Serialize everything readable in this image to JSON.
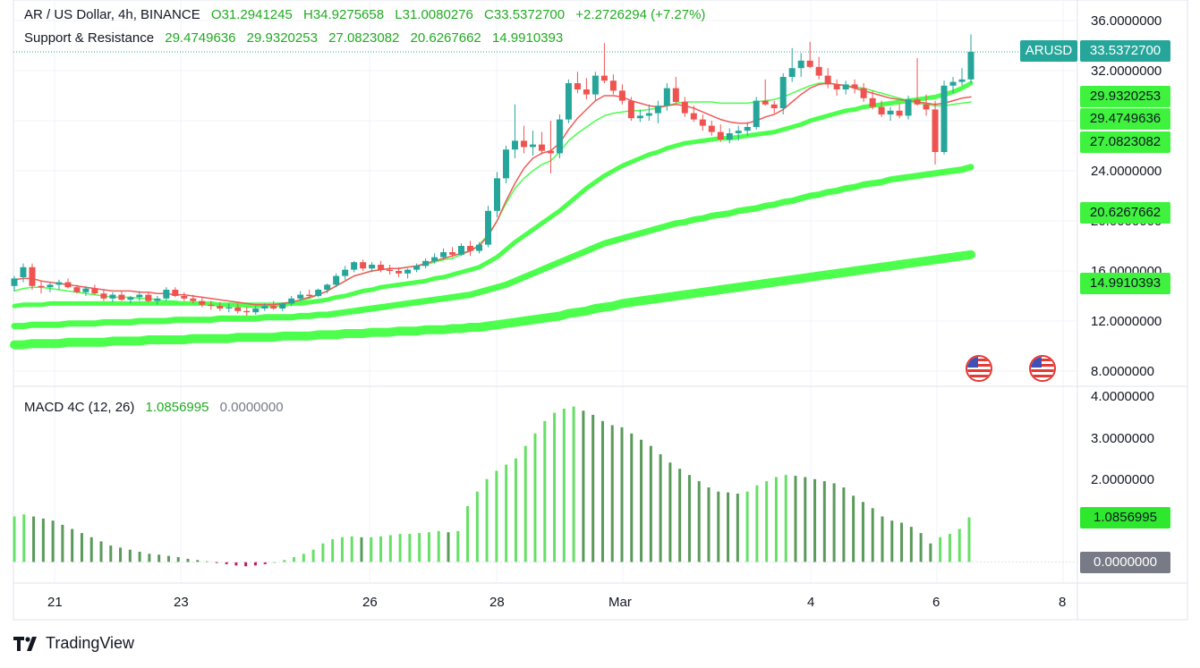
{
  "header": {
    "symbol_line": "AR / US Dollar, 4h, BINANCE",
    "open": "O31.2941245",
    "high": "H34.9275658",
    "low": "L31.0080276",
    "close": "C33.5372700",
    "change": "+2.2726294 (+7.27%)",
    "sr_label": "Support & Resistance",
    "sr_values": [
      "29.4749636",
      "29.9320253",
      "27.0823082",
      "20.6267662",
      "14.9910393"
    ]
  },
  "price_axis": {
    "ticks": [
      "36.0000000",
      "32.0000000",
      "24.0000000",
      "20.0000000",
      "16.0000000",
      "12.0000000",
      "8.0000000"
    ],
    "ticker_label": "ARUSD",
    "last_price": "33.5372700",
    "level_labels": [
      "29.9320253",
      "29.4749636",
      "27.0823082",
      "20.6267662",
      "14.9910393"
    ]
  },
  "macd": {
    "label": "MACD 4C (12, 26)",
    "value": "1.0856995",
    "zero": "0.0000000",
    "ticks": [
      "4.0000000",
      "3.0000000",
      "2.0000000"
    ],
    "value_box": "1.0856995",
    "zero_box": "0.0000000"
  },
  "time_axis": [
    "21",
    "23",
    "26",
    "28",
    "Mar",
    "4",
    "6",
    "8"
  ],
  "brand": "TradingView",
  "colors": {
    "up": "#26a69a",
    "down": "#ef5350",
    "ma_green": "#4cff4c",
    "ma_red": "#f05a5a",
    "macd_light": "#66e066",
    "macd_dark": "#5a9a5a"
  },
  "chart_data": {
    "type": "candlestick",
    "title": "AR / US Dollar, 4h, BINANCE",
    "ylim": [
      8,
      36
    ],
    "x_ticks": [
      "21",
      "23",
      "26",
      "28",
      "Mar",
      "4",
      "6",
      "8"
    ],
    "support_resistance": [
      29.4749636,
      29.9320253,
      27.0823082,
      20.6267662,
      14.9910393
    ],
    "candles": [
      [
        14.8,
        15.6,
        14.4,
        15.4
      ],
      [
        15.5,
        16.6,
        15.1,
        16.3
      ],
      [
        16.3,
        16.6,
        14.5,
        14.8
      ],
      [
        14.8,
        15.2,
        14.2,
        14.7
      ],
      [
        14.7,
        15.1,
        14.3,
        14.9
      ],
      [
        14.9,
        15.3,
        14.5,
        15.1
      ],
      [
        15.1,
        15.4,
        14.6,
        14.7
      ],
      [
        14.7,
        14.9,
        14.2,
        14.3
      ],
      [
        14.3,
        14.8,
        14.0,
        14.6
      ],
      [
        14.6,
        14.9,
        14.1,
        14.2
      ],
      [
        14.2,
        14.5,
        13.6,
        13.8
      ],
      [
        13.8,
        14.3,
        13.5,
        14.1
      ],
      [
        14.1,
        14.4,
        13.6,
        13.7
      ],
      [
        13.7,
        14.0,
        13.4,
        13.9
      ],
      [
        13.9,
        14.4,
        13.6,
        14.1
      ],
      [
        14.1,
        14.3,
        13.5,
        13.6
      ],
      [
        13.6,
        14.0,
        13.3,
        13.8
      ],
      [
        13.8,
        14.7,
        13.6,
        14.5
      ],
      [
        14.5,
        14.7,
        13.9,
        14.0
      ],
      [
        14.0,
        14.3,
        13.6,
        13.8
      ],
      [
        13.8,
        14.1,
        13.4,
        13.6
      ],
      [
        13.6,
        13.9,
        13.1,
        13.3
      ],
      [
        13.3,
        13.6,
        12.9,
        13.2
      ],
      [
        13.2,
        13.5,
        12.8,
        13.0
      ],
      [
        13.0,
        13.4,
        12.7,
        13.1
      ],
      [
        13.1,
        13.4,
        12.6,
        12.8
      ],
      [
        12.8,
        13.1,
        12.4,
        12.7
      ],
      [
        12.7,
        13.2,
        12.5,
        13.0
      ],
      [
        13.0,
        13.4,
        12.8,
        13.2
      ],
      [
        13.2,
        13.6,
        12.9,
        13.0
      ],
      [
        13.0,
        13.5,
        12.8,
        13.4
      ],
      [
        13.4,
        14.0,
        13.2,
        13.8
      ],
      [
        13.8,
        14.4,
        13.6,
        14.1
      ],
      [
        14.1,
        14.5,
        13.8,
        14.0
      ],
      [
        14.0,
        14.6,
        13.9,
        14.5
      ],
      [
        14.5,
        15.0,
        14.2,
        14.9
      ],
      [
        14.9,
        15.8,
        14.7,
        15.6
      ],
      [
        15.6,
        16.4,
        15.3,
        16.1
      ],
      [
        16.1,
        16.8,
        15.9,
        16.7
      ],
      [
        16.7,
        16.9,
        16.0,
        16.2
      ],
      [
        16.2,
        16.7,
        15.9,
        16.5
      ],
      [
        16.5,
        16.8,
        15.9,
        16.1
      ],
      [
        16.1,
        16.5,
        15.7,
        16.0
      ],
      [
        16.0,
        16.3,
        15.5,
        15.8
      ],
      [
        15.8,
        16.2,
        15.4,
        16.1
      ],
      [
        16.1,
        16.6,
        15.9,
        16.4
      ],
      [
        16.4,
        17.0,
        16.2,
        16.8
      ],
      [
        16.8,
        17.4,
        16.6,
        17.1
      ],
      [
        17.1,
        17.8,
        16.9,
        17.5
      ],
      [
        17.5,
        17.9,
        17.1,
        17.3
      ],
      [
        17.3,
        18.2,
        17.2,
        18.0
      ],
      [
        18.0,
        18.4,
        17.2,
        17.6
      ],
      [
        17.6,
        18.3,
        17.4,
        18.1
      ],
      [
        18.1,
        21.2,
        17.9,
        20.8
      ],
      [
        20.8,
        23.9,
        20.3,
        23.4
      ],
      [
        23.4,
        26.0,
        23.0,
        25.7
      ],
      [
        25.7,
        29.3,
        25.0,
        26.4
      ],
      [
        26.4,
        27.6,
        25.4,
        25.9
      ],
      [
        25.9,
        27.2,
        25.2,
        26.1
      ],
      [
        26.1,
        27.1,
        25.3,
        25.6
      ],
      [
        25.6,
        28.0,
        23.8,
        25.4
      ],
      [
        25.4,
        28.5,
        25.0,
        28.1
      ],
      [
        28.1,
        31.3,
        27.8,
        31.0
      ],
      [
        31.0,
        31.9,
        30.2,
        30.5
      ],
      [
        30.5,
        31.4,
        29.7,
        30.1
      ],
      [
        30.1,
        31.9,
        29.6,
        31.6
      ],
      [
        31.6,
        34.2,
        31.0,
        31.2
      ],
      [
        31.2,
        31.7,
        30.1,
        30.4
      ],
      [
        30.4,
        30.9,
        29.3,
        29.6
      ],
      [
        29.6,
        29.9,
        28.0,
        28.2
      ],
      [
        28.2,
        28.9,
        27.9,
        28.4
      ],
      [
        28.4,
        29.3,
        28.0,
        28.6
      ],
      [
        28.6,
        29.6,
        27.8,
        29.2
      ],
      [
        29.2,
        31.0,
        28.8,
        30.6
      ],
      [
        30.6,
        31.5,
        29.4,
        29.5
      ],
      [
        29.5,
        29.9,
        28.3,
        28.6
      ],
      [
        28.6,
        29.2,
        27.9,
        28.1
      ],
      [
        28.1,
        28.5,
        27.2,
        27.6
      ],
      [
        27.6,
        28.0,
        26.8,
        27.1
      ],
      [
        27.1,
        27.7,
        26.3,
        26.5
      ],
      [
        26.5,
        27.4,
        26.2,
        27.0
      ],
      [
        27.0,
        27.6,
        26.4,
        27.2
      ],
      [
        27.2,
        27.9,
        26.8,
        27.5
      ],
      [
        27.5,
        29.9,
        27.3,
        29.6
      ],
      [
        29.6,
        31.3,
        29.2,
        29.3
      ],
      [
        29.3,
        29.6,
        28.6,
        29.0
      ],
      [
        29.0,
        31.8,
        28.5,
        31.5
      ],
      [
        31.5,
        33.8,
        31.1,
        32.2
      ],
      [
        32.2,
        33.4,
        31.5,
        32.8
      ],
      [
        32.8,
        34.3,
        32.2,
        32.3
      ],
      [
        32.3,
        33.1,
        31.3,
        31.6
      ],
      [
        31.6,
        32.2,
        30.6,
        30.9
      ],
      [
        30.9,
        31.3,
        30.0,
        30.5
      ],
      [
        30.5,
        31.2,
        30.1,
        30.9
      ],
      [
        30.9,
        31.3,
        30.2,
        30.6
      ],
      [
        30.6,
        31.0,
        29.5,
        29.8
      ],
      [
        29.8,
        30.4,
        28.9,
        29.1
      ],
      [
        29.1,
        29.6,
        28.3,
        28.5
      ],
      [
        28.5,
        29.1,
        28.0,
        28.8
      ],
      [
        28.8,
        29.4,
        28.2,
        28.4
      ],
      [
        28.4,
        30.0,
        28.1,
        29.7
      ],
      [
        29.7,
        33.0,
        29.2,
        29.3
      ],
      [
        29.3,
        30.1,
        28.4,
        28.9
      ],
      [
        28.9,
        29.6,
        24.5,
        25.5
      ],
      [
        25.5,
        31.2,
        25.3,
        30.8
      ],
      [
        30.8,
        31.5,
        30.2,
        31.1
      ],
      [
        31.1,
        32.2,
        30.8,
        31.3
      ],
      [
        31.3,
        34.9,
        31.0,
        33.5
      ]
    ],
    "series": [
      {
        "name": "29.4749636",
        "values": [
          14.4,
          14.6,
          14.7,
          14.7,
          14.6,
          14.5,
          14.4,
          14.3,
          14.2,
          14.1,
          14.0,
          13.9,
          13.9,
          13.9,
          13.8,
          13.8,
          13.7,
          13.6,
          13.6,
          13.5,
          13.5,
          13.4,
          13.4,
          13.3,
          13.2,
          13.2,
          13.1,
          13.1,
          13.1,
          13.2,
          13.3,
          13.4,
          13.6,
          13.8,
          14.1,
          14.4,
          14.8,
          15.2,
          15.6,
          15.8,
          16.0,
          16.1,
          16.2,
          16.2,
          16.3,
          16.4,
          16.5,
          16.7,
          16.9,
          17.0,
          17.3,
          17.6,
          18.1,
          18.9,
          20.0,
          21.4,
          22.6,
          23.4,
          24.0,
          24.5,
          24.8,
          25.5,
          26.4,
          27.0,
          27.5,
          28.0,
          28.4,
          28.6,
          28.7,
          28.8,
          28.8,
          28.9,
          29.0,
          29.2,
          29.4,
          29.5,
          29.5,
          29.5,
          29.5,
          29.4,
          29.4,
          29.4,
          29.4,
          29.5,
          29.6,
          29.7,
          29.9,
          30.2,
          30.5,
          30.8,
          31.0,
          31.0,
          30.9,
          30.8,
          30.7,
          30.6,
          30.4,
          30.2,
          30.0,
          29.8,
          29.6,
          29.4,
          29.3,
          29.2,
          29.2,
          29.3,
          29.4,
          29.5
        ]
      },
      {
        "name": "29.9320253",
        "values": [
          15.3,
          15.4,
          15.4,
          15.2,
          15.1,
          15.0,
          14.9,
          14.8,
          14.7,
          14.6,
          14.5,
          14.4,
          14.4,
          14.4,
          14.3,
          14.3,
          14.2,
          14.2,
          14.1,
          14.1,
          14.0,
          13.9,
          13.8,
          13.7,
          13.6,
          13.5,
          13.4,
          13.3,
          13.3,
          13.3,
          13.4,
          13.5,
          13.7,
          13.9,
          14.1,
          14.4,
          14.8,
          15.2,
          15.6,
          15.8,
          16.0,
          16.1,
          16.2,
          16.2,
          16.3,
          16.4,
          16.6,
          16.8,
          17.0,
          17.2,
          17.4,
          17.6,
          18.0,
          18.8,
          20.0,
          21.6,
          23.0,
          24.2,
          25.0,
          25.4,
          25.6,
          26.2,
          27.3,
          28.2,
          28.9,
          29.6,
          30.0,
          30.0,
          29.9,
          29.6,
          29.4,
          29.2,
          29.1,
          29.2,
          29.3,
          29.2,
          29.0,
          28.7,
          28.4,
          28.1,
          27.9,
          27.8,
          27.8,
          28.0,
          28.3,
          28.5,
          28.9,
          29.5,
          30.1,
          30.6,
          30.9,
          31.0,
          30.9,
          30.8,
          30.6,
          30.4,
          30.2,
          30.0,
          29.8,
          29.7,
          29.6,
          29.5,
          29.4,
          29.3,
          29.4,
          29.6,
          29.8,
          29.9
        ]
      },
      {
        "name": "27.0823082",
        "values": [
          13.2,
          13.3,
          13.3,
          13.3,
          13.4,
          13.4,
          13.4,
          13.4,
          13.4,
          13.4,
          13.4,
          13.4,
          13.4,
          13.4,
          13.4,
          13.4,
          13.4,
          13.4,
          13.4,
          13.4,
          13.4,
          13.4,
          13.4,
          13.3,
          13.3,
          13.3,
          13.3,
          13.3,
          13.3,
          13.3,
          13.3,
          13.4,
          13.4,
          13.5,
          13.6,
          13.7,
          13.9,
          14.0,
          14.2,
          14.4,
          14.5,
          14.7,
          14.8,
          14.9,
          15.0,
          15.1,
          15.2,
          15.4,
          15.5,
          15.7,
          15.9,
          16.1,
          16.3,
          16.7,
          17.1,
          17.7,
          18.3,
          18.8,
          19.3,
          19.8,
          20.3,
          20.8,
          21.4,
          22.0,
          22.6,
          23.1,
          23.6,
          24.0,
          24.4,
          24.7,
          25.0,
          25.3,
          25.5,
          25.8,
          26.0,
          26.2,
          26.3,
          26.4,
          26.5,
          26.6,
          26.6,
          26.7,
          26.8,
          26.9,
          27.0,
          27.1,
          27.3,
          27.5,
          27.7,
          28.0,
          28.2,
          28.4,
          28.6,
          28.8,
          28.9,
          29.1,
          29.2,
          29.3,
          29.4,
          29.5,
          29.6,
          29.7,
          29.8,
          29.9,
          30.1,
          30.3,
          30.6,
          31.0
        ]
      },
      {
        "name": "20.6267662",
        "values": [
          11.6,
          11.6,
          11.7,
          11.7,
          11.7,
          11.7,
          11.8,
          11.8,
          11.8,
          11.8,
          11.9,
          11.9,
          11.9,
          11.9,
          12.0,
          12.0,
          12.0,
          12.0,
          12.1,
          12.1,
          12.1,
          12.1,
          12.1,
          12.2,
          12.2,
          12.2,
          12.2,
          12.2,
          12.3,
          12.3,
          12.3,
          12.3,
          12.4,
          12.4,
          12.5,
          12.5,
          12.6,
          12.7,
          12.8,
          12.9,
          13.0,
          13.1,
          13.2,
          13.3,
          13.4,
          13.5,
          13.6,
          13.7,
          13.8,
          13.9,
          14.0,
          14.1,
          14.3,
          14.5,
          14.7,
          14.9,
          15.2,
          15.5,
          15.8,
          16.1,
          16.4,
          16.7,
          17.0,
          17.3,
          17.6,
          17.9,
          18.2,
          18.4,
          18.6,
          18.8,
          19.0,
          19.2,
          19.4,
          19.6,
          19.8,
          19.9,
          20.1,
          20.2,
          20.4,
          20.5,
          20.6,
          20.8,
          20.9,
          21.0,
          21.2,
          21.3,
          21.5,
          21.6,
          21.8,
          22.0,
          22.1,
          22.3,
          22.4,
          22.6,
          22.7,
          22.9,
          23.0,
          23.1,
          23.3,
          23.4,
          23.5,
          23.6,
          23.7,
          23.8,
          23.9,
          24.0,
          24.1,
          24.3
        ]
      },
      {
        "name": "14.9910393",
        "values": [
          10.1,
          10.1,
          10.2,
          10.2,
          10.2,
          10.2,
          10.3,
          10.3,
          10.3,
          10.3,
          10.3,
          10.4,
          10.4,
          10.4,
          10.4,
          10.5,
          10.5,
          10.5,
          10.5,
          10.5,
          10.6,
          10.6,
          10.6,
          10.6,
          10.6,
          10.7,
          10.7,
          10.7,
          10.7,
          10.7,
          10.8,
          10.8,
          10.8,
          10.8,
          10.9,
          10.9,
          10.9,
          11.0,
          11.0,
          11.0,
          11.1,
          11.1,
          11.1,
          11.2,
          11.2,
          11.2,
          11.3,
          11.3,
          11.3,
          11.4,
          11.4,
          11.5,
          11.5,
          11.6,
          11.7,
          11.8,
          11.9,
          12.0,
          12.1,
          12.2,
          12.3,
          12.4,
          12.6,
          12.7,
          12.8,
          13.0,
          13.1,
          13.2,
          13.4,
          13.5,
          13.6,
          13.7,
          13.8,
          13.9,
          14.0,
          14.1,
          14.2,
          14.3,
          14.4,
          14.5,
          14.6,
          14.7,
          14.8,
          14.9,
          15.0,
          15.1,
          15.2,
          15.3,
          15.4,
          15.5,
          15.6,
          15.7,
          15.8,
          15.9,
          16.0,
          16.1,
          16.2,
          16.3,
          16.4,
          16.5,
          16.6,
          16.7,
          16.8,
          16.9,
          17.0,
          17.1,
          17.2,
          17.3
        ]
      }
    ],
    "macd_values": [
      1.1,
      1.15,
      1.1,
      1.05,
      1.0,
      0.9,
      0.8,
      0.7,
      0.6,
      0.5,
      0.4,
      0.35,
      0.3,
      0.25,
      0.2,
      0.18,
      0.15,
      0.12,
      0.08,
      0.05,
      0.02,
      -0.02,
      -0.05,
      -0.08,
      -0.1,
      -0.08,
      -0.05,
      0.0,
      0.05,
      0.12,
      0.2,
      0.3,
      0.45,
      0.55,
      0.6,
      0.62,
      0.6,
      0.6,
      0.62,
      0.65,
      0.68,
      0.68,
      0.7,
      0.72,
      0.75,
      0.72,
      0.75,
      1.35,
      1.7,
      2.0,
      2.2,
      2.35,
      2.5,
      2.8,
      3.1,
      3.4,
      3.6,
      3.7,
      3.75,
      3.65,
      3.55,
      3.4,
      3.3,
      3.25,
      3.1,
      2.95,
      2.8,
      2.6,
      2.4,
      2.25,
      2.1,
      1.95,
      1.8,
      1.7,
      1.68,
      1.65,
      1.7,
      1.85,
      1.95,
      2.05,
      2.1,
      2.08,
      2.05,
      2.0,
      1.95,
      1.9,
      1.8,
      1.6,
      1.45,
      1.3,
      1.1,
      1.0,
      0.95,
      0.85,
      0.7,
      0.45,
      0.6,
      0.68,
      0.8,
      1.08
    ],
    "macd_ylim": [
      -0.3,
      4.3
    ]
  }
}
